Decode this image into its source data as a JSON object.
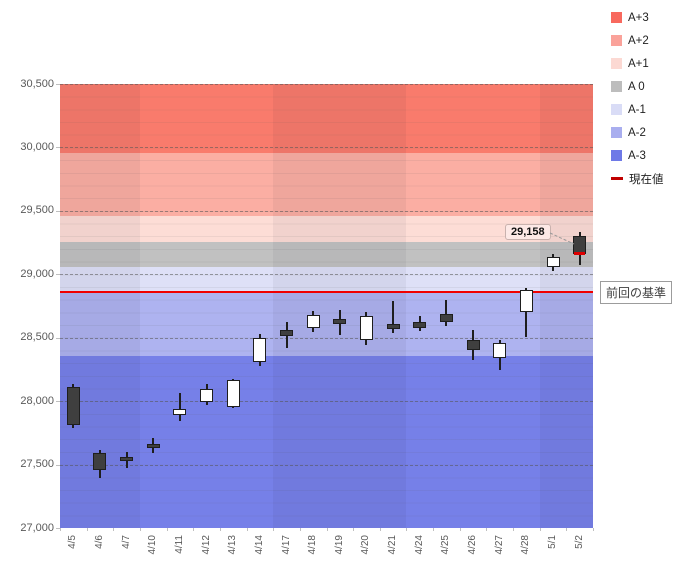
{
  "legend": {
    "items": [
      {
        "label": "A+3",
        "color": "#f8695e"
      },
      {
        "label": "A+2",
        "color": "#faa29a"
      },
      {
        "label": "A+1",
        "color": "#fcd9d3"
      },
      {
        "label": "A 0",
        "color": "#bdbdbd"
      },
      {
        "label": "A-1",
        "color": "#d9dcf6"
      },
      {
        "label": "A-2",
        "color": "#a9aeef"
      },
      {
        "label": "A-3",
        "color": "#6e79e7"
      }
    ],
    "current_value_label": "現在値",
    "current_value_color": "#c00000"
  },
  "callout": {
    "text": "29,158"
  },
  "baseline_box": {
    "text": "前回の基準"
  },
  "chart_data": {
    "type": "candlestick",
    "x": [
      "4/5",
      "4/6",
      "4/7",
      "4/10",
      "4/11",
      "4/12",
      "4/13",
      "4/14",
      "4/17",
      "4/18",
      "4/19",
      "4/20",
      "4/21",
      "4/24",
      "4/25",
      "4/26",
      "4/27",
      "4/28",
      "5/1",
      "5/2"
    ],
    "ohlc": [
      [
        28115,
        28135,
        27790,
        27810
      ],
      [
        27590,
        27615,
        27395,
        27455
      ],
      [
        27560,
        27600,
        27470,
        27525
      ],
      [
        27665,
        27710,
        27590,
        27630
      ],
      [
        27890,
        28065,
        27845,
        27935
      ],
      [
        27990,
        28135,
        27970,
        28095
      ],
      [
        27950,
        28175,
        27945,
        28170
      ],
      [
        28310,
        28530,
        28275,
        28495
      ],
      [
        28560,
        28620,
        28415,
        28515
      ],
      [
        28575,
        28710,
        28545,
        28680
      ],
      [
        28645,
        28720,
        28525,
        28605
      ],
      [
        28480,
        28700,
        28440,
        28675
      ],
      [
        28605,
        28790,
        28535,
        28570
      ],
      [
        28625,
        28675,
        28555,
        28575
      ],
      [
        28690,
        28800,
        28595,
        28620
      ],
      [
        28485,
        28560,
        28325,
        28405
      ],
      [
        28340,
        28480,
        28245,
        28455
      ],
      [
        28705,
        28895,
        28505,
        28875
      ],
      [
        29055,
        29160,
        29025,
        29135
      ],
      [
        29305,
        29330,
        29070,
        29158
      ]
    ],
    "ylim": [
      27000,
      30500
    ],
    "ytick_labels": [
      "27,000",
      "27,500",
      "28,000",
      "28,500",
      "29,000",
      "29,500",
      "30,000",
      "30,500"
    ],
    "ytick_values": [
      27000,
      27500,
      28000,
      28500,
      29000,
      29500,
      30000,
      30500
    ],
    "grid": "dashed horizontal every 500",
    "bands": [
      {
        "name": "A+3",
        "from": 29958,
        "to": 30500,
        "color": "#f97b6c"
      },
      {
        "name": "A+2",
        "from": 29458,
        "to": 29958,
        "color": "#fbaea3"
      },
      {
        "name": "A+1",
        "from": 29258,
        "to": 29458,
        "color": "#fdddd6"
      },
      {
        "name": "A 0",
        "from": 29058,
        "to": 29258,
        "color": "#c1c1c1"
      },
      {
        "name": "A-1",
        "from": 28858,
        "to": 29058,
        "color": "#dee0f7"
      },
      {
        "name": "A-2",
        "from": 28358,
        "to": 28858,
        "color": "#aeb3f0"
      },
      {
        "name": "A-3",
        "from": 27000,
        "to": 28358,
        "color": "#7680e8"
      }
    ],
    "current_line": {
      "value": 28858,
      "color": "#f00000",
      "label": "前回の基準"
    },
    "week_groups": [
      3,
      5,
      5,
      5,
      2
    ],
    "annotated_last_close": 29158,
    "last_close_mark_color": "#dd0000",
    "candle_up_color": "#ffffff",
    "candle_down_color": "#3f3f3f",
    "legend_position": "top-right"
  }
}
